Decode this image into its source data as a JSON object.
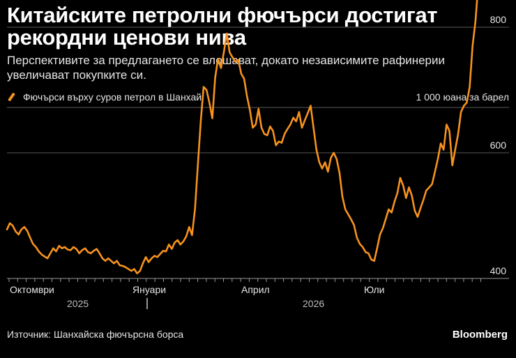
{
  "header": {
    "title": "Китайските петролни фючърси достигат рекордни ценови нива",
    "subtitle": "Перспективите за предлагането се влошават, докато независимите рафинерии увеличават покупките си."
  },
  "footer": {
    "source": "Източник: Шанхайска фючърсна борса",
    "brand": "Bloomberg"
  },
  "colors": {
    "background": "#000000",
    "series": "#f7931e",
    "grid": "#5a5a5a",
    "text": "#e6e6e6"
  },
  "chart_data": {
    "type": "line",
    "ylabel": "1 000 юана за барел",
    "ylim": [
      360,
      880
    ],
    "yticks": [
      400,
      600,
      800
    ],
    "grid": true,
    "legend_position": "top-left",
    "x_month_labels": [
      "Октомври",
      "Януари",
      "Април",
      "Юли"
    ],
    "x_year_labels": [
      "2025",
      "2026"
    ],
    "series": [
      {
        "name": "Фючърси върху суров петрол в Шанхай",
        "values": [
          478,
          488,
          484,
          475,
          470,
          478,
          482,
          476,
          465,
          455,
          450,
          443,
          438,
          435,
          432,
          440,
          448,
          443,
          452,
          448,
          450,
          446,
          445,
          450,
          447,
          440,
          445,
          448,
          442,
          440,
          444,
          447,
          440,
          432,
          428,
          432,
          428,
          424,
          428,
          421,
          420,
          418,
          415,
          412,
          415,
          408,
          412,
          424,
          434,
          426,
          432,
          436,
          434,
          439,
          444,
          443,
          454,
          447,
          457,
          461,
          454,
          459,
          467,
          482,
          469,
          510,
          580,
          650,
          705,
          700,
          680,
          655,
          720,
          750,
          735,
          760,
          790,
          760,
          752,
          745,
          748,
          726,
          718,
          690,
          668,
          640,
          645,
          670,
          640,
          630,
          628,
          642,
          635,
          612,
          618,
          616,
          630,
          638,
          645,
          656,
          650,
          665,
          640,
          652,
          663,
          675,
          640,
          605,
          585,
          575,
          585,
          570,
          592,
          600,
          590,
          568,
          530,
          510,
          502,
          494,
          485,
          465,
          455,
          450,
          442,
          440,
          430,
          428,
          448,
          470,
          480,
          495,
          510,
          505,
          522,
          536,
          560,
          548,
          528,
          545,
          532,
          508,
          498,
          512,
          525,
          540,
          545,
          550,
          570,
          590,
          615,
          605,
          645,
          635,
          580,
          605,
          630,
          665,
          675,
          680,
          705,
          770,
          810,
          870
        ]
      }
    ]
  }
}
